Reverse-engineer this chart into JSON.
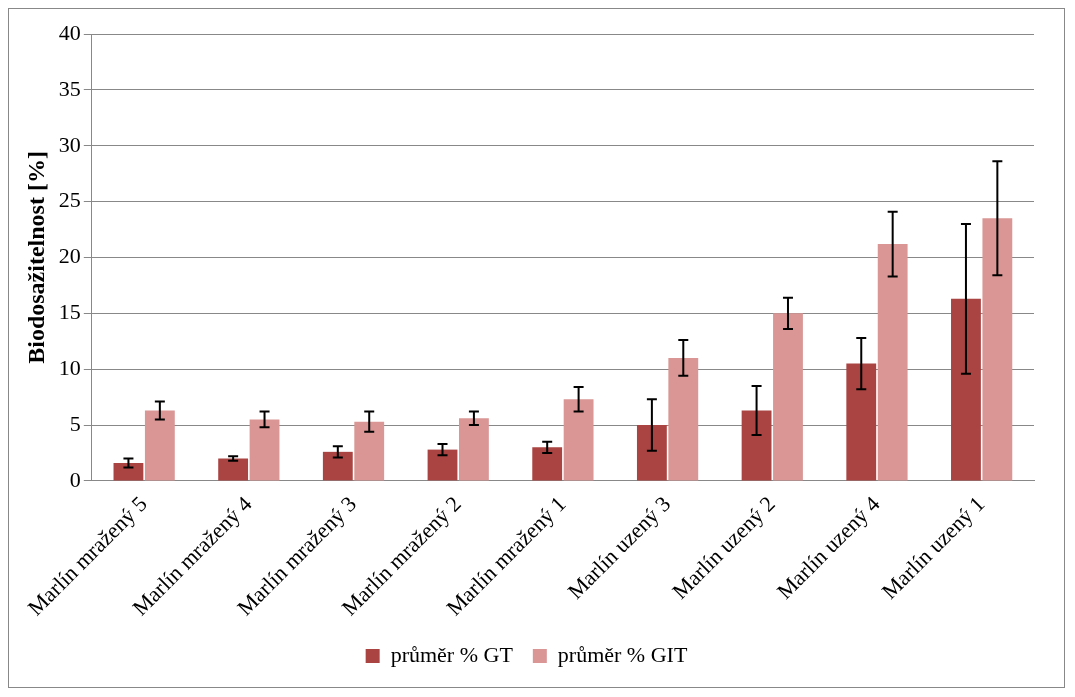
{
  "chart_data": {
    "type": "bar",
    "ylabel": "Biodosažitelnost [%]",
    "categories": [
      "Marlín mražený 5",
      "Marlín mražený 4",
      "Marlín mražený 3",
      "Marlín mražený 2",
      "Marlín mražený 1",
      "Marlín uzený 3",
      "Marlín uzený 2",
      "Marlín uzený 4",
      "Marlín uzený 1"
    ],
    "series": [
      {
        "name": "průměr % GT",
        "color": "#a94442",
        "values": [
          1.6,
          2.0,
          2.6,
          2.8,
          3.0,
          5.0,
          6.3,
          10.5,
          16.3
        ],
        "errors": [
          0.4,
          0.2,
          0.5,
          0.5,
          0.5,
          2.3,
          2.2,
          2.3,
          6.7
        ]
      },
      {
        "name": "průměr % GIT",
        "color": "#d99694",
        "values": [
          6.3,
          5.5,
          5.3,
          5.6,
          7.3,
          11.0,
          15.0,
          21.2,
          23.5
        ],
        "errors": [
          0.8,
          0.7,
          0.9,
          0.6,
          1.1,
          1.6,
          1.4,
          2.9,
          5.1
        ]
      }
    ],
    "ylim": [
      0,
      40
    ],
    "yticks": [
      0,
      5,
      10,
      15,
      20,
      25,
      30,
      35,
      40
    ],
    "grid": "y",
    "legend": "bottom"
  }
}
